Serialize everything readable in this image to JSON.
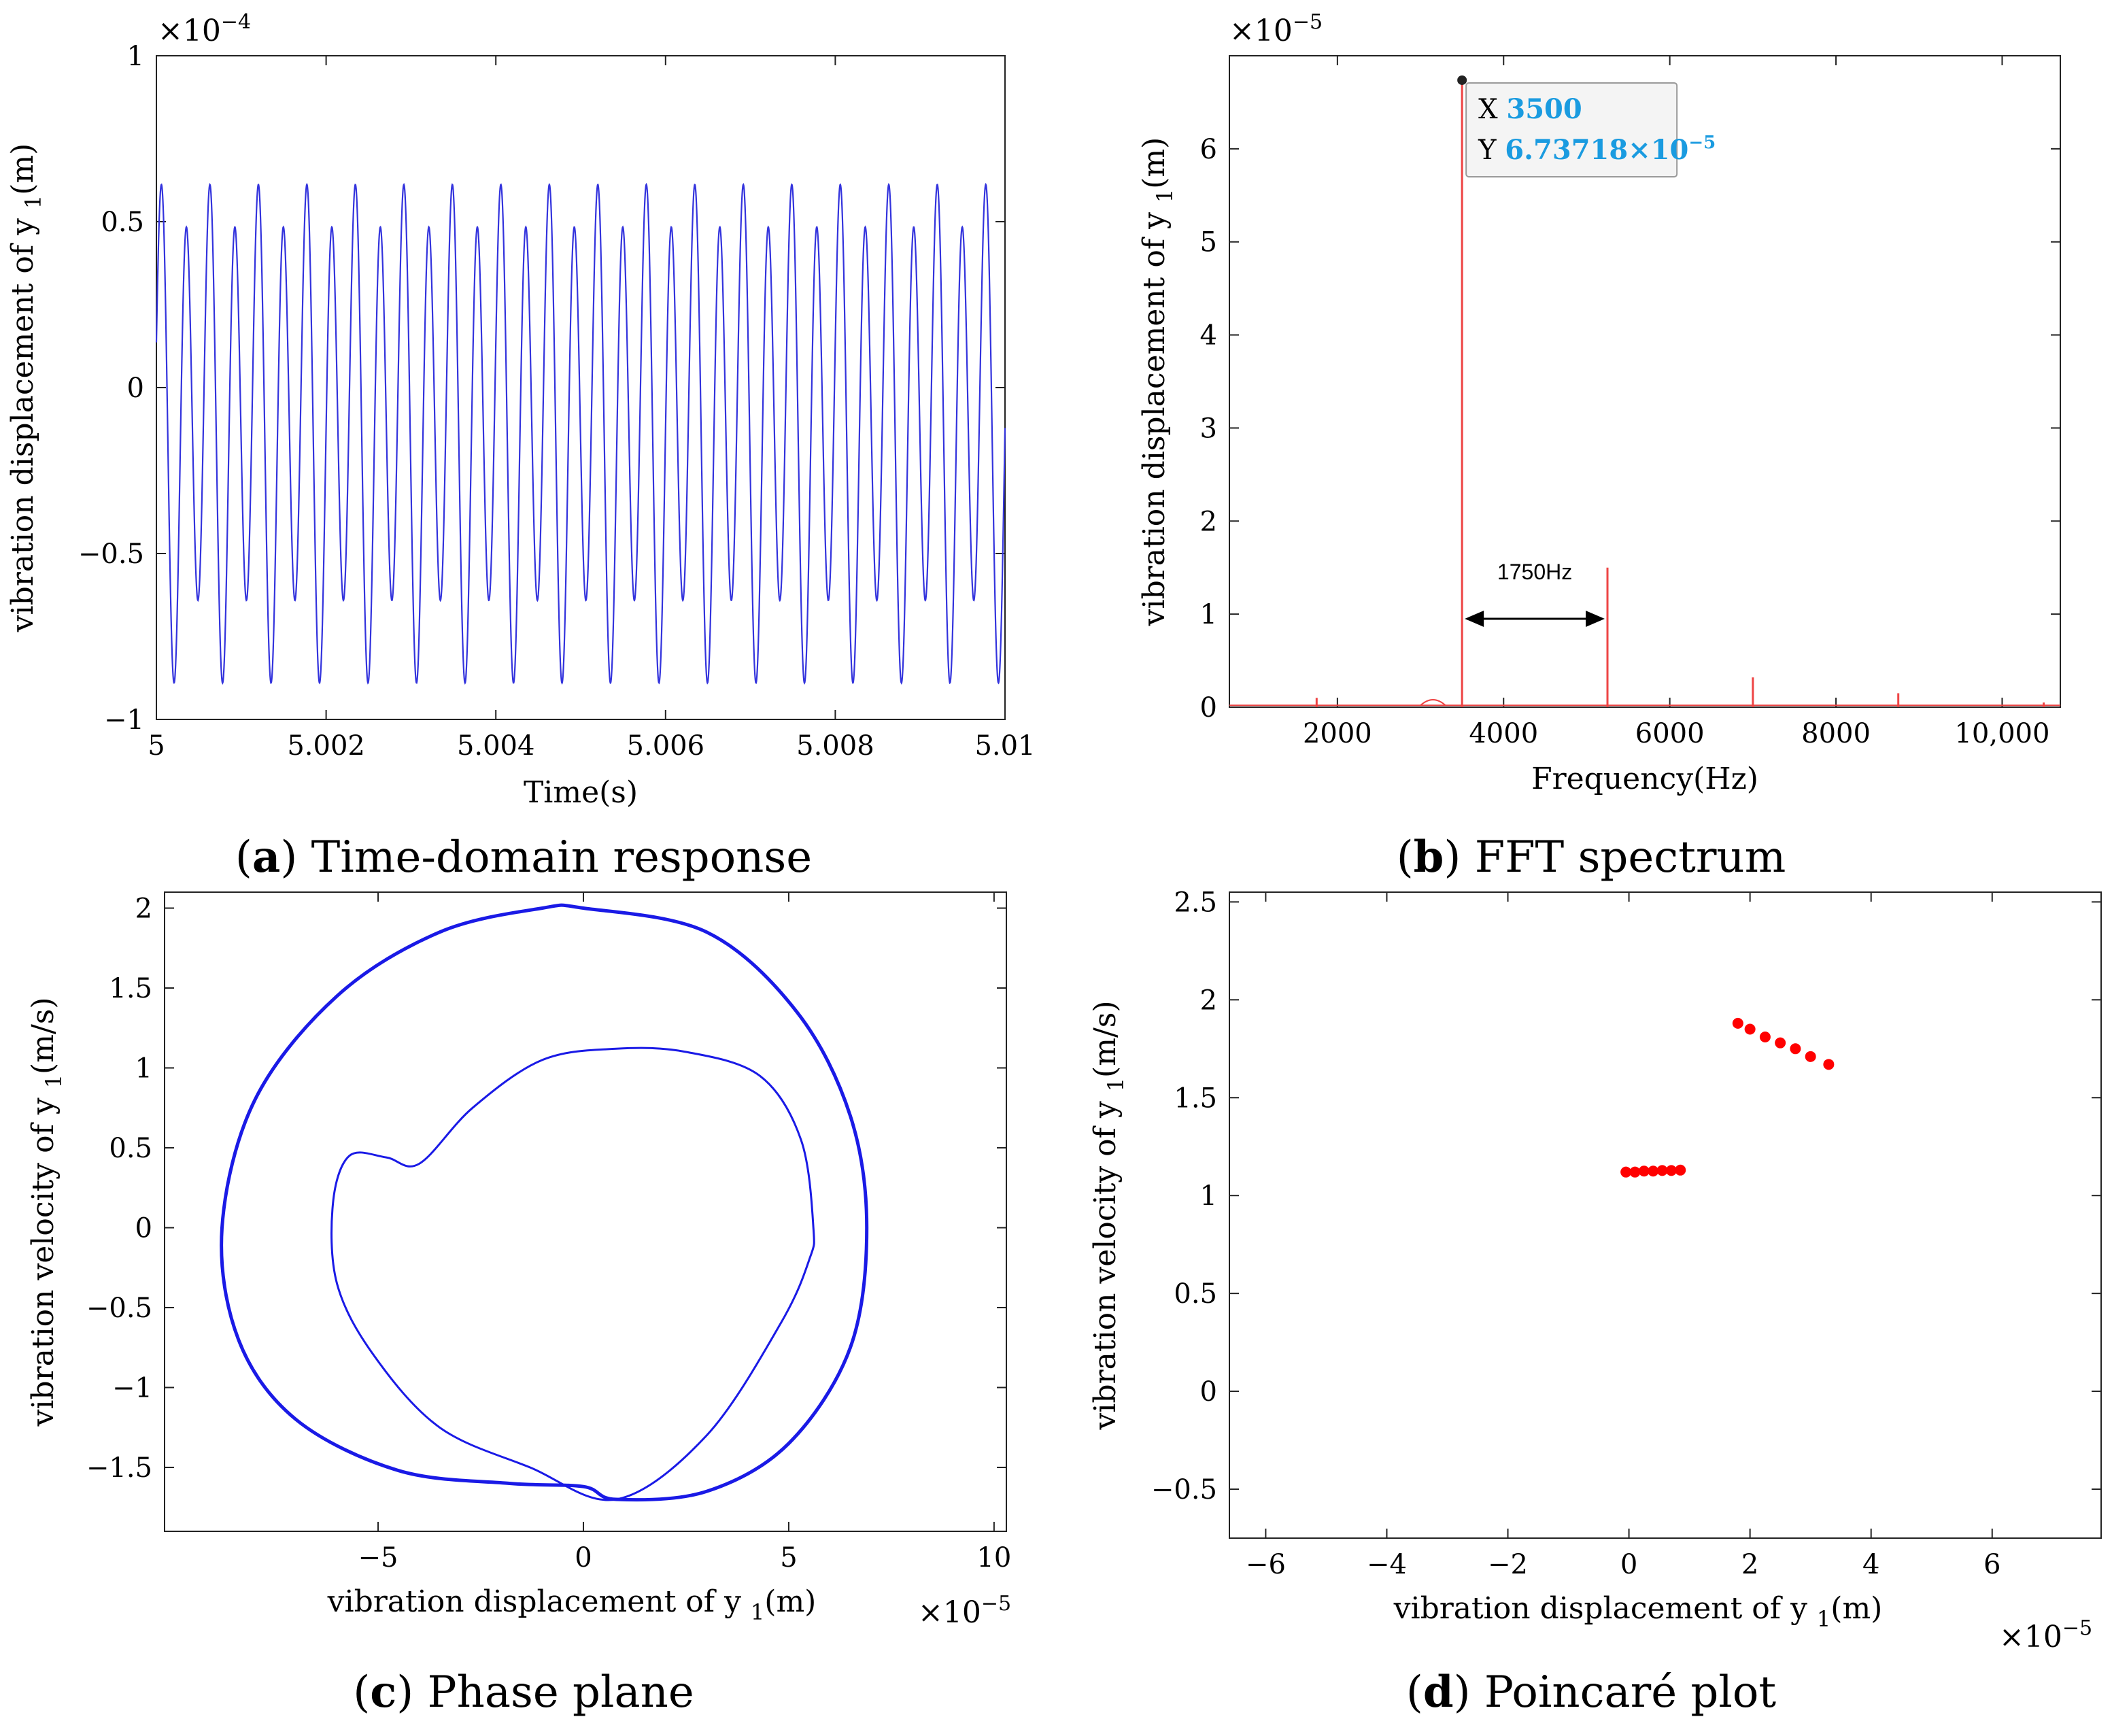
{
  "figure": {
    "captions": [
      {
        "letter": "a",
        "text": ") Time-domain response"
      },
      {
        "letter": "b",
        "text": ") FFT spectrum"
      },
      {
        "letter": "c",
        "text": ") Phase plane"
      },
      {
        "letter": "d",
        "text": ") Poincaré plot"
      }
    ]
  },
  "chart_data": [
    {
      "id": "a",
      "type": "line",
      "title": "Time-domain response",
      "xlabel": "Time(s)",
      "ylabel": "vibration displacement of y",
      "ylabel_sub": "1",
      "ylabel_unit": "(m)",
      "y_multiplier": "×10",
      "y_multiplier_exp": "−4",
      "xlim": [
        5,
        5.01
      ],
      "ylim": [
        -1,
        1
      ],
      "xticks": [
        5,
        5.002,
        5.004,
        5.006,
        5.008,
        5.01
      ],
      "xtick_labels": [
        "5",
        "5.002",
        "5.004",
        "5.006",
        "5.008",
        "5.01"
      ],
      "yticks": [
        -1,
        -0.5,
        0,
        0.5,
        1
      ],
      "ytick_labels": [
        "−1",
        "−0.5",
        "0",
        "0.5",
        "1"
      ],
      "series": [
        {
          "name": "y1 displacement",
          "color": "#3333dd",
          "fundamental_hz": 1750,
          "period2_hz": 3500,
          "peaks": [
            0.69,
            0.56
          ],
          "troughs": [
            -0.89,
            -0.62
          ],
          "units": "1e-4 m"
        }
      ]
    },
    {
      "id": "b",
      "type": "line",
      "title": "FFT spectrum",
      "xlabel": "Frequency(Hz)",
      "ylabel": "vibration displacement of y",
      "ylabel_sub": "1",
      "ylabel_unit": "(m)",
      "y_multiplier": "×10",
      "y_multiplier_exp": "−5",
      "xlim": [
        700,
        10700
      ],
      "ylim": [
        0,
        7
      ],
      "xticks": [
        2000,
        4000,
        6000,
        8000,
        10000
      ],
      "xtick_labels": [
        "2000",
        "4000",
        "6000",
        "8000",
        "10,000"
      ],
      "yticks": [
        0,
        1,
        2,
        3,
        4,
        5,
        6
      ],
      "ytick_labels": [
        "0",
        "1",
        "2",
        "3",
        "4",
        "5",
        "6"
      ],
      "peaks": [
        {
          "x": 1750,
          "y": 0.1
        },
        {
          "x": 3500,
          "y": 6.73718
        },
        {
          "x": 5250,
          "y": 1.5
        },
        {
          "x": 7000,
          "y": 0.32
        },
        {
          "x": 8750,
          "y": 0.15
        },
        {
          "x": 10500,
          "y": 0.05
        }
      ],
      "color": "#ee4444",
      "datatip": {
        "x_label": "X",
        "x_value": "3500",
        "y_label": "Y",
        "y_value": "6.73718×10",
        "y_value_exp": "−5"
      },
      "annotation": {
        "text": "1750Hz",
        "from_x": 3500,
        "to_x": 5250,
        "y": 0.95
      }
    },
    {
      "id": "c",
      "type": "line",
      "title": "Phase plane",
      "xlabel": "vibration displacement of y",
      "xlabel_sub": "1",
      "xlabel_unit": "(m)",
      "ylabel": "vibration velocity of y",
      "ylabel_sub": "1",
      "ylabel_unit": "(m/s)",
      "x_multiplier": "×10",
      "x_multiplier_exp": "−5",
      "xlim": [
        -10.2,
        10.3
      ],
      "ylim": [
        -1.9,
        2.1
      ],
      "xticks": [
        -5,
        0,
        5,
        10
      ],
      "xtick_labels": [
        "−5",
        "0",
        "5",
        "10"
      ],
      "yticks": [
        -1.5,
        -1,
        -0.5,
        0,
        0.5,
        1,
        1.5,
        2
      ],
      "ytick_labels": [
        "−1.5",
        "−1",
        "−0.5",
        "0",
        "0.5",
        "1",
        "1.5",
        "2"
      ],
      "color": "#1a1ae6",
      "loops": [
        {
          "name": "outer orbit",
          "points": [
            [
              6.9,
              0
            ],
            [
              6.5,
              0.7
            ],
            [
              5.2,
              1.35
            ],
            [
              3.0,
              1.85
            ],
            [
              0,
              2.0
            ],
            [
              -1,
              2.0
            ],
            [
              -3.5,
              1.85
            ],
            [
              -6,
              1.45
            ],
            [
              -8.0,
              0.8
            ],
            [
              -8.8,
              0
            ],
            [
              -8.4,
              -0.7
            ],
            [
              -7.0,
              -1.2
            ],
            [
              -4.5,
              -1.52
            ],
            [
              -1.8,
              -1.6
            ],
            [
              0,
              -1.62
            ],
            [
              0.8,
              -1.7
            ],
            [
              3.0,
              -1.65
            ],
            [
              5.0,
              -1.35
            ],
            [
              6.5,
              -0.75
            ],
            [
              6.9,
              0
            ]
          ]
        },
        {
          "name": "inner orbit",
          "points": [
            [
              5.6,
              0
            ],
            [
              5.3,
              0.55
            ],
            [
              4.3,
              0.95
            ],
            [
              2.5,
              1.1
            ],
            [
              0.8,
              1.12
            ],
            [
              -1,
              1.05
            ],
            [
              -2.7,
              0.75
            ],
            [
              -4.0,
              0.4
            ],
            [
              -4.8,
              0.44
            ],
            [
              -5.7,
              0.45
            ],
            [
              -6.1,
              0.15
            ],
            [
              -6.0,
              -0.35
            ],
            [
              -5.1,
              -0.8
            ],
            [
              -3.5,
              -1.25
            ],
            [
              -1.3,
              -1.5
            ],
            [
              0.8,
              -1.7
            ],
            [
              3.0,
              -1.3
            ],
            [
              4.8,
              -0.6
            ],
            [
              5.5,
              -0.2
            ],
            [
              5.6,
              0
            ]
          ]
        }
      ]
    },
    {
      "id": "d",
      "type": "scatter",
      "title": "Poincaré plot",
      "xlabel": "vibration displacement of y",
      "xlabel_sub": "1",
      "xlabel_unit": "(m)",
      "ylabel": "vibration velocity of y",
      "ylabel_sub": "1",
      "ylabel_unit": "(m/s)",
      "x_multiplier": "×10",
      "x_multiplier_exp": "−5",
      "xlim": [
        -6.6,
        7.8
      ],
      "ylim": [
        -0.75,
        2.55
      ],
      "xticks": [
        -6,
        -4,
        -2,
        0,
        2,
        4,
        6
      ],
      "xtick_labels": [
        "−6",
        "−4",
        "−2",
        "0",
        "2",
        "4",
        "6"
      ],
      "yticks": [
        -0.5,
        0,
        0.5,
        1,
        1.5,
        2,
        2.5
      ],
      "ytick_labels": [
        "−0.5",
        "0",
        "0.5",
        "1",
        "1.5",
        "2",
        "2.5"
      ],
      "color": "#ff0000",
      "points": [
        [
          -0.05,
          1.12
        ],
        [
          0.1,
          1.12
        ],
        [
          0.25,
          1.125
        ],
        [
          0.4,
          1.125
        ],
        [
          0.55,
          1.128
        ],
        [
          0.7,
          1.128
        ],
        [
          0.85,
          1.13
        ],
        [
          1.8,
          1.88
        ],
        [
          2.0,
          1.85
        ],
        [
          2.25,
          1.81
        ],
        [
          2.5,
          1.78
        ],
        [
          2.75,
          1.75
        ],
        [
          3.0,
          1.71
        ],
        [
          3.3,
          1.67
        ]
      ]
    }
  ]
}
